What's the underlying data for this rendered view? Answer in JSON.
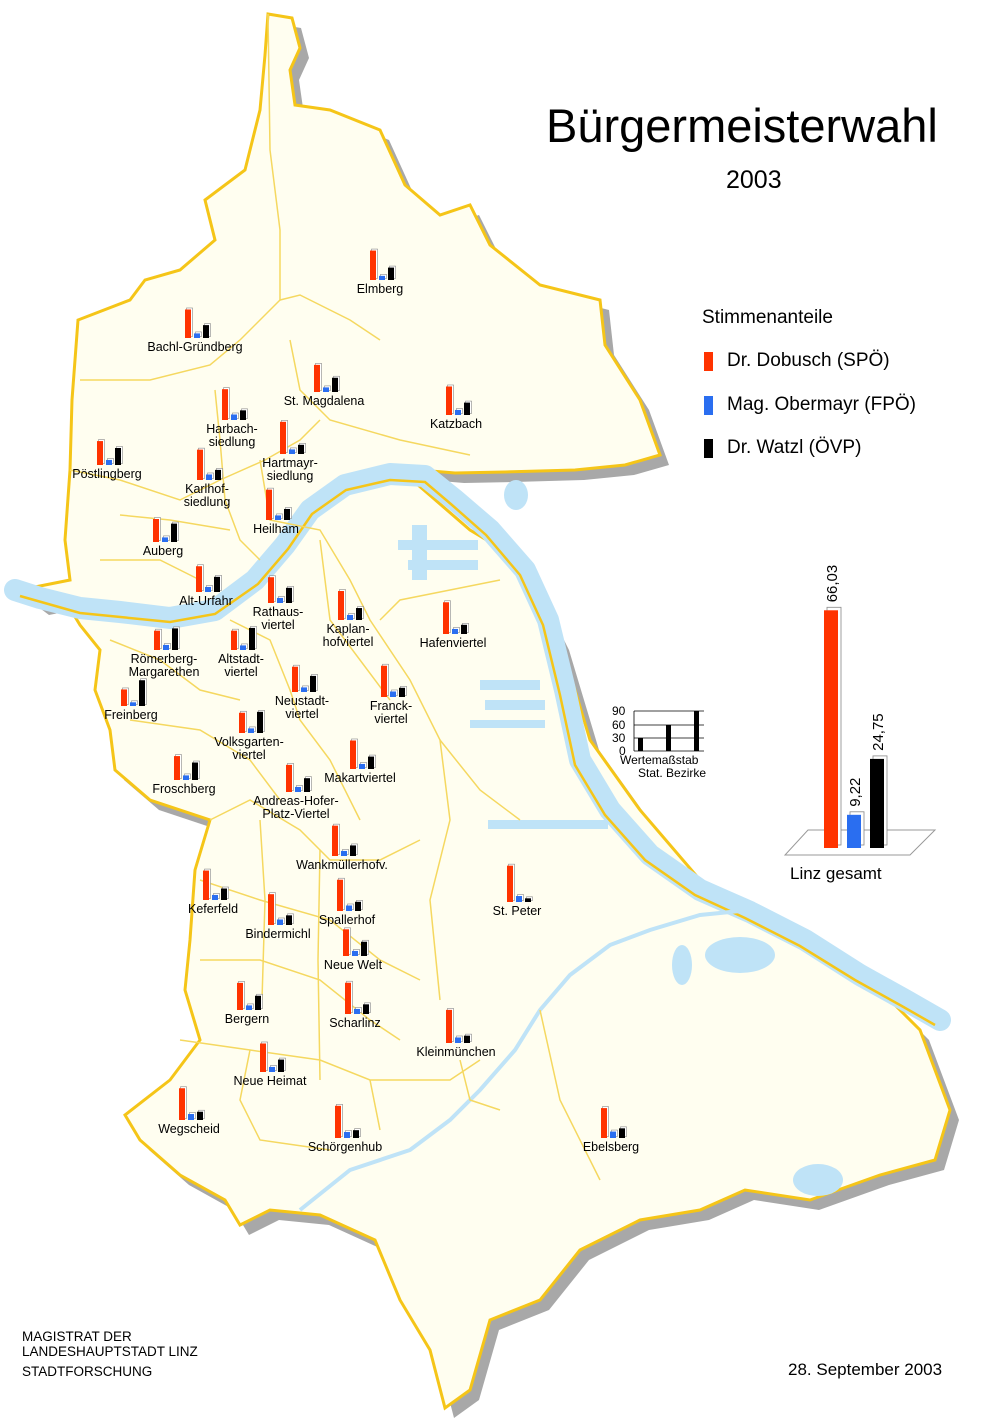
{
  "title": "Bürgermeisterwahl",
  "year": "2003",
  "legend": {
    "heading": "Stimmenanteile",
    "items": [
      {
        "label": "Dr. Dobusch (SPÖ)",
        "color": "#ff3300"
      },
      {
        "label": "Mag. Obermayr (FPÖ)",
        "color": "#2a6ef0"
      },
      {
        "label": "Dr. Watzl (ÖVP)",
        "color": "#000000"
      }
    ]
  },
  "colors": {
    "land": "#fffef0",
    "border": "#f5c518",
    "river": "#bfe3f7",
    "shadow": "#a8a8a8"
  },
  "scale": {
    "ticks": [
      "90",
      "60",
      "30",
      "0"
    ],
    "line1": "Wertemaßstab",
    "line2": "Stat. Bezirke"
  },
  "total": {
    "label": "Linz gesamt",
    "values": [
      {
        "party": "SPÖ",
        "value": 66.03,
        "text": "66,03"
      },
      {
        "party": "FPÖ",
        "value": 9.22,
        "text": "9,22"
      },
      {
        "party": "ÖVP",
        "value": 24.75,
        "text": "24,75"
      }
    ]
  },
  "districts": [
    {
      "name": [
        "Elmberg"
      ],
      "v": [
        64,
        9,
        27
      ]
    },
    {
      "name": [
        "Bachl-Gründberg"
      ],
      "v": [
        62,
        10,
        28
      ]
    },
    {
      "name": [
        "St. Magdalena"
      ],
      "v": [
        59,
        10,
        31
      ]
    },
    {
      "name": [
        "Katzbach"
      ],
      "v": [
        62,
        11,
        27
      ]
    },
    {
      "name": [
        "Harbach-",
        "siedlung"
      ],
      "v": [
        67,
        12,
        21
      ]
    },
    {
      "name": [
        "Hartmayr-",
        "siedlung"
      ],
      "v": [
        70,
        10,
        20
      ]
    },
    {
      "name": [
        "Pöstlingberg"
      ],
      "v": [
        52,
        11,
        37
      ]
    },
    {
      "name": [
        "Karlhof-",
        "siedlung"
      ],
      "v": [
        66,
        12,
        22
      ]
    },
    {
      "name": [
        "Heilham"
      ],
      "v": [
        66,
        10,
        24
      ]
    },
    {
      "name": [
        "Auberg"
      ],
      "v": [
        50,
        10,
        40
      ]
    },
    {
      "name": [
        "Alt-Urfahr"
      ],
      "v": [
        56,
        11,
        33
      ]
    },
    {
      "name": [
        "Rathaus-",
        "viertel"
      ],
      "v": [
        56,
        11,
        33
      ]
    },
    {
      "name": [
        "Kaplan-",
        "hofviertel"
      ],
      "v": [
        63,
        11,
        26
      ]
    },
    {
      "name": [
        "Hafenviertel"
      ],
      "v": [
        69,
        11,
        20
      ]
    },
    {
      "name": [
        "Römerberg-",
        "Margarethen"
      ],
      "v": [
        42,
        11,
        47
      ]
    },
    {
      "name": [
        "Altstadt-",
        "viertel"
      ],
      "v": [
        42,
        10,
        48
      ]
    },
    {
      "name": [
        "Neustadt-",
        "viertel"
      ],
      "v": [
        55,
        10,
        35
      ]
    },
    {
      "name": [
        "Franck-",
        "viertel"
      ],
      "v": [
        68,
        12,
        20
      ]
    },
    {
      "name": [
        "Freinberg"
      ],
      "v": [
        36,
        8,
        56
      ]
    },
    {
      "name": [
        "Volksgarten-",
        "viertel"
      ],
      "v": [
        44,
        10,
        46
      ]
    },
    {
      "name": [
        "Froschberg"
      ],
      "v": [
        52,
        10,
        38
      ]
    },
    {
      "name": [
        "Andreas-Hofer-",
        "Platz-Viertel"
      ],
      "v": [
        59,
        11,
        30
      ]
    },
    {
      "name": [
        "Makartviertel"
      ],
      "v": [
        62,
        11,
        27
      ]
    },
    {
      "name": [
        "Wankmüllerhofv."
      ],
      "v": [
        66,
        11,
        23
      ]
    },
    {
      "name": [
        "Keferfeld"
      ],
      "v": [
        64,
        11,
        25
      ]
    },
    {
      "name": [
        "St. Peter"
      ],
      "v": [
        79,
        13,
        8
      ]
    },
    {
      "name": [
        "Bindermichl"
      ],
      "v": [
        67,
        12,
        21
      ]
    },
    {
      "name": [
        "Spallerhof"
      ],
      "v": [
        68,
        12,
        20
      ]
    },
    {
      "name": [
        "Neue Welt"
      ],
      "v": [
        58,
        11,
        31
      ]
    },
    {
      "name": [
        "Bergern"
      ],
      "v": [
        59,
        10,
        31
      ]
    },
    {
      "name": [
        "Scharlinz"
      ],
      "v": [
        68,
        11,
        21
      ]
    },
    {
      "name": [
        "Kleinmünchen"
      ],
      "v": [
        72,
        12,
        16
      ]
    },
    {
      "name": [
        "Neue Heimat"
      ],
      "v": [
        62,
        11,
        27
      ]
    },
    {
      "name": [
        "Wegscheid"
      ],
      "v": [
        69,
        13,
        18
      ]
    },
    {
      "name": [
        "Schörgenhub"
      ],
      "v": [
        70,
        13,
        17
      ]
    },
    {
      "name": [
        "Ebelsberg"
      ],
      "v": [
        65,
        14,
        21
      ]
    }
  ],
  "footer": {
    "line1": "MAGISTRAT  DER",
    "line2": "LANDESHAUPTSTADT  LINZ",
    "line3": "STADTFORSCHUNG",
    "date": "28. September 2003"
  }
}
